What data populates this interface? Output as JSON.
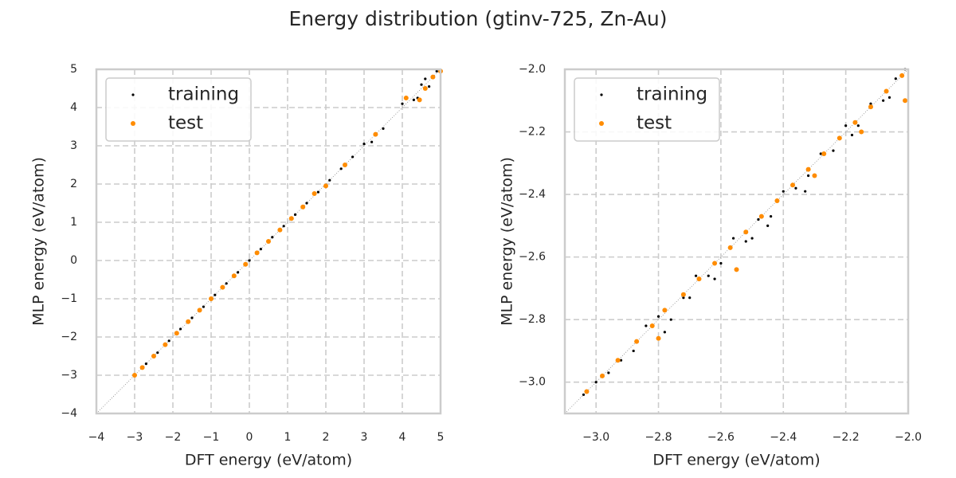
{
  "title": "Energy distribution (gtinv-725, Zn-Au)",
  "chart_data": [
    {
      "type": "scatter",
      "xlabel": "DFT energy (eV/atom)",
      "ylabel": "MLP energy (eV/atom)",
      "grid": true,
      "legend": "upper left",
      "xlim": [
        -4,
        5
      ],
      "ylim": [
        -4,
        5
      ],
      "xticks": [
        {
          "value": -4,
          "label": "−4"
        },
        {
          "value": -3,
          "label": "−3"
        },
        {
          "value": -2,
          "label": "−2"
        },
        {
          "value": -1,
          "label": "−1"
        },
        0,
        1,
        2,
        3,
        4,
        5
      ],
      "yticks": [
        {
          "value": -4,
          "label": "−4"
        },
        {
          "value": -3,
          "label": "−3"
        },
        {
          "value": -2,
          "label": "−2"
        },
        {
          "value": -1,
          "label": "−1"
        },
        0,
        1,
        2,
        3,
        4,
        5
      ],
      "series": [
        {
          "name": "training",
          "color": "#000000",
          "x": [
            -3,
            -2.7,
            -2.4,
            -2.1,
            -1.8,
            -1.5,
            -1.2,
            -0.9,
            -0.6,
            -0.3,
            0,
            0.3,
            0.6,
            0.9,
            1.2,
            1.5,
            1.8,
            2.1,
            2.4,
            2.7,
            3.0,
            3.2,
            3.5,
            4.0,
            4.3,
            4.5,
            4.7,
            4.9,
            4.6,
            4.4
          ],
          "values": [
            -3.0,
            -2.7,
            -2.41,
            -2.1,
            -1.79,
            -1.5,
            -1.21,
            -0.9,
            -0.6,
            -0.31,
            0.0,
            0.3,
            0.61,
            0.9,
            1.2,
            1.5,
            1.79,
            2.1,
            2.4,
            2.71,
            3.05,
            3.1,
            3.45,
            4.1,
            4.2,
            4.6,
            4.55,
            4.95,
            4.75,
            4.25
          ]
        },
        {
          "name": "test",
          "color": "#ff8c00",
          "x": [
            -3,
            -2.8,
            -2.5,
            -2.2,
            -1.9,
            -1.6,
            -1.3,
            -1.0,
            -0.7,
            -0.4,
            -0.1,
            0.2,
            0.5,
            0.8,
            1.1,
            1.4,
            1.7,
            2.0,
            2.5,
            3.3,
            4.1,
            4.45,
            4.6,
            4.8,
            5.0
          ],
          "values": [
            -3.0,
            -2.8,
            -2.5,
            -2.2,
            -1.9,
            -1.6,
            -1.3,
            -1.0,
            -0.7,
            -0.4,
            -0.1,
            0.2,
            0.5,
            0.8,
            1.1,
            1.4,
            1.75,
            1.95,
            2.5,
            3.3,
            4.25,
            4.2,
            4.5,
            4.8,
            4.95
          ]
        }
      ]
    },
    {
      "type": "scatter",
      "xlabel": "DFT energy (eV/atom)",
      "ylabel": "MLP energy (eV/atom)",
      "grid": true,
      "legend": "upper left",
      "xlim": [
        -3.1,
        -2.0
      ],
      "ylim": [
        -3.1,
        -2.0
      ],
      "xticks": [
        {
          "value": -3.0,
          "label": "−3.0"
        },
        {
          "value": -2.8,
          "label": "−2.8"
        },
        {
          "value": -2.6,
          "label": "−2.6"
        },
        {
          "value": -2.4,
          "label": "−2.4"
        },
        {
          "value": -2.2,
          "label": "−2.2"
        },
        {
          "value": -2.0,
          "label": "−2.0"
        }
      ],
      "yticks": [
        {
          "value": -3.0,
          "label": "−3.0"
        },
        {
          "value": -2.8,
          "label": "−2.8"
        },
        {
          "value": -2.6,
          "label": "−2.6"
        },
        {
          "value": -2.4,
          "label": "−2.4"
        },
        {
          "value": -2.2,
          "label": "−2.2"
        },
        {
          "value": -2.0,
          "label": "−2.0"
        }
      ],
      "series": [
        {
          "name": "training",
          "color": "#000000",
          "x": [
            -3.04,
            -3.0,
            -2.96,
            -2.92,
            -2.88,
            -2.84,
            -2.8,
            -2.76,
            -2.72,
            -2.68,
            -2.64,
            -2.6,
            -2.56,
            -2.52,
            -2.48,
            -2.44,
            -2.4,
            -2.36,
            -2.32,
            -2.28,
            -2.24,
            -2.2,
            -2.16,
            -2.12,
            -2.08,
            -2.04,
            -2.01,
            -2.78,
            -2.62,
            -2.45,
            -2.33,
            -2.18,
            -2.06,
            -2.7,
            -2.5
          ],
          "values": [
            -3.04,
            -3.0,
            -2.97,
            -2.93,
            -2.9,
            -2.82,
            -2.79,
            -2.8,
            -2.73,
            -2.66,
            -2.66,
            -2.62,
            -2.54,
            -2.55,
            -2.48,
            -2.47,
            -2.39,
            -2.38,
            -2.34,
            -2.27,
            -2.26,
            -2.18,
            -2.18,
            -2.11,
            -2.1,
            -2.03,
            -2.0,
            -2.84,
            -2.67,
            -2.5,
            -2.39,
            -2.21,
            -2.09,
            -2.73,
            -2.54
          ]
        },
        {
          "name": "test",
          "color": "#ff8c00",
          "x": [
            -3.03,
            -2.98,
            -2.93,
            -2.87,
            -2.82,
            -2.78,
            -2.72,
            -2.67,
            -2.62,
            -2.57,
            -2.52,
            -2.47,
            -2.42,
            -2.37,
            -2.32,
            -2.27,
            -2.22,
            -2.17,
            -2.12,
            -2.07,
            -2.02,
            -2.01,
            -2.8,
            -2.55,
            -2.3,
            -2.15
          ],
          "values": [
            -3.03,
            -2.98,
            -2.93,
            -2.87,
            -2.82,
            -2.77,
            -2.72,
            -2.67,
            -2.62,
            -2.57,
            -2.52,
            -2.47,
            -2.42,
            -2.37,
            -2.32,
            -2.27,
            -2.22,
            -2.17,
            -2.12,
            -2.07,
            -2.02,
            -2.1,
            -2.86,
            -2.64,
            -2.34,
            -2.2
          ]
        }
      ]
    }
  ]
}
